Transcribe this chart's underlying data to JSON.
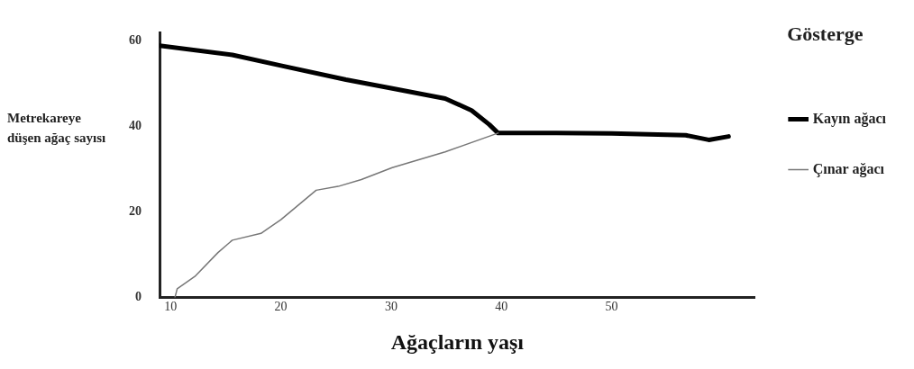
{
  "chart_data": {
    "type": "line",
    "xlabel": "Ağaçların yaşı",
    "ylabel": "Metrekareye düşen ağaç sayısı",
    "legend_title": "Gösterge",
    "legend": "right",
    "grid": false,
    "marker": "none",
    "line_style": "solid",
    "xlim": [
      9,
      63
    ],
    "xticks": [
      10,
      20,
      30,
      40,
      50
    ],
    "ylim": [
      0,
      62
    ],
    "yticks": [
      0,
      20,
      40,
      60
    ],
    "series": [
      {
        "name": "Kayın ağacı",
        "color": "#000000",
        "x": [
          9,
          15.6,
          20,
          25.9,
          30,
          34.9,
          37.3,
          38.9,
          39.7,
          45,
          50,
          56.7,
          58.8,
          60.6
        ],
        "values": [
          59,
          56.8,
          54.3,
          51,
          49,
          46.6,
          43.8,
          40.5,
          38.5,
          38.5,
          38.4,
          38,
          36.9,
          37.7
        ]
      },
      {
        "name": "Çınar ağacı",
        "color": "#777777",
        "x": [
          10.4,
          10.6,
          12.2,
          14.3,
          15.6,
          18.2,
          20,
          23.2,
          25.2,
          27.3,
          30.1,
          34.9,
          39.7
        ],
        "values": [
          0,
          2,
          4.9,
          10.5,
          13.4,
          15,
          18.2,
          25.1,
          26,
          27.6,
          30.4,
          34.1,
          38.5
        ]
      }
    ]
  }
}
